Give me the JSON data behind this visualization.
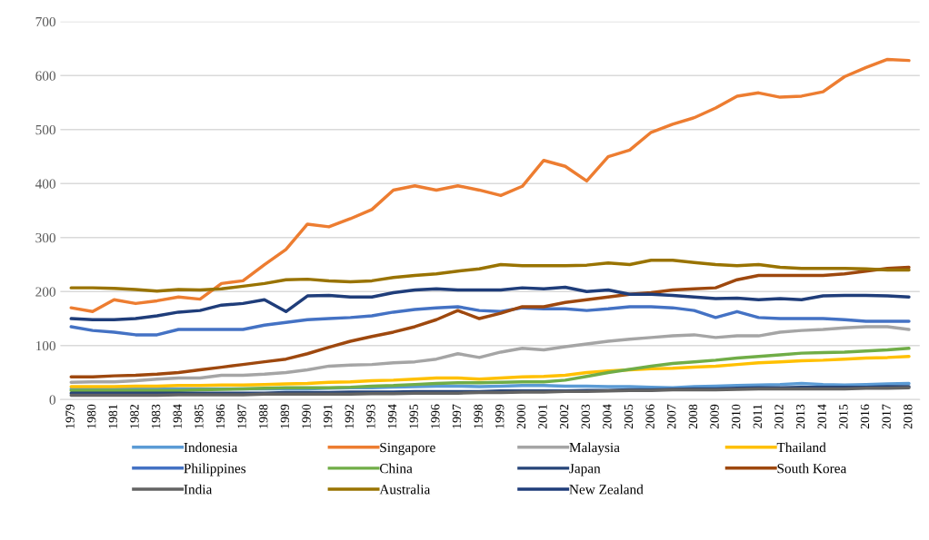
{
  "chart_data": {
    "type": "line",
    "categories": [
      "1979",
      "1980",
      "1981",
      "1982",
      "1983",
      "1984",
      "1985",
      "1986",
      "1987",
      "1988",
      "1989",
      "1990",
      "1991",
      "1992",
      "1993",
      "1994",
      "1995",
      "1996",
      "1997",
      "1998",
      "1999",
      "2000",
      "2001",
      "2002",
      "2003",
      "2004",
      "2005",
      "2006",
      "2007",
      "2008",
      "2009",
      "2010",
      "2011",
      "2012",
      "2013",
      "2014",
      "2015",
      "2016",
      "2017",
      "2018"
    ],
    "ylim": [
      0,
      700
    ],
    "yticks": [
      0,
      100,
      200,
      300,
      400,
      500,
      600,
      700
    ],
    "grid": "y",
    "legend": "bottom",
    "marker": "none",
    "line_style": "solid",
    "series": [
      {
        "name": "Indonesia",
        "color": "#5b9bd5",
        "values": [
          20,
          20,
          20,
          20,
          20,
          20,
          20,
          20,
          20,
          20,
          20,
          20,
          21,
          22,
          22,
          23,
          24,
          25,
          25,
          24,
          25,
          26,
          26,
          25,
          25,
          24,
          24,
          23,
          22,
          24,
          25,
          26,
          27,
          28,
          30,
          28,
          27,
          28,
          29,
          30
        ]
      },
      {
        "name": "Singapore",
        "color": "#ed7d31",
        "values": [
          170,
          163,
          185,
          178,
          183,
          190,
          186,
          215,
          220,
          250,
          278,
          325,
          320,
          335,
          352,
          388,
          396,
          388,
          396,
          388,
          378,
          395,
          443,
          432,
          405,
          450,
          462,
          495,
          510,
          522,
          540,
          562,
          568,
          560,
          562,
          570,
          598,
          615,
          630,
          628
        ]
      },
      {
        "name": "Malaysia",
        "color": "#a5a5a5",
        "values": [
          32,
          33,
          33,
          35,
          38,
          40,
          40,
          45,
          45,
          47,
          50,
          55,
          62,
          64,
          65,
          68,
          70,
          75,
          85,
          78,
          88,
          95,
          92,
          98,
          103,
          108,
          112,
          115,
          118,
          120,
          115,
          118,
          118,
          125,
          128,
          130,
          133,
          135,
          135,
          130
        ]
      },
      {
        "name": "Thailand",
        "color": "#ffc000",
        "values": [
          24,
          24,
          24,
          25,
          25,
          26,
          26,
          27,
          27,
          28,
          29,
          30,
          32,
          33,
          35,
          36,
          38,
          40,
          40,
          38,
          40,
          42,
          43,
          45,
          50,
          53,
          55,
          57,
          58,
          60,
          62,
          65,
          68,
          70,
          72,
          73,
          75,
          77,
          78,
          80
        ]
      },
      {
        "name": "Philippines",
        "color": "#4472c4",
        "values": [
          135,
          128,
          125,
          120,
          120,
          130,
          130,
          130,
          130,
          138,
          143,
          148,
          150,
          152,
          155,
          162,
          167,
          170,
          172,
          165,
          163,
          170,
          168,
          168,
          165,
          168,
          172,
          172,
          170,
          165,
          152,
          163,
          152,
          150,
          150,
          150,
          148,
          145,
          145,
          145
        ]
      },
      {
        "name": "China",
        "color": "#70ad47",
        "values": [
          17,
          17,
          17,
          17,
          17,
          17,
          18,
          19,
          20,
          21,
          22,
          22,
          22,
          23,
          25,
          26,
          28,
          30,
          31,
          31,
          32,
          33,
          33,
          36,
          43,
          50,
          56,
          62,
          67,
          70,
          73,
          77,
          80,
          83,
          86,
          87,
          88,
          90,
          92,
          95
        ]
      },
      {
        "name": "Japan",
        "color": "#264478",
        "values": [
          12,
          12,
          12,
          12,
          12,
          12,
          12,
          12,
          12,
          12,
          13,
          13,
          13,
          14,
          14,
          14,
          15,
          15,
          15,
          15,
          16,
          16,
          16,
          16,
          17,
          17,
          18,
          18,
          19,
          20,
          20,
          21,
          22,
          22,
          23,
          23,
          23,
          23,
          24,
          24
        ]
      },
      {
        "name": "South Korea",
        "color": "#9e480e",
        "values": [
          42,
          42,
          44,
          45,
          47,
          50,
          55,
          60,
          65,
          70,
          75,
          85,
          97,
          108,
          117,
          125,
          135,
          148,
          165,
          150,
          160,
          172,
          172,
          180,
          185,
          190,
          195,
          198,
          203,
          205,
          207,
          222,
          230,
          230,
          230,
          230,
          233,
          238,
          243,
          245
        ]
      },
      {
        "name": "India",
        "color": "#636363",
        "values": [
          8,
          8,
          8,
          8,
          8,
          9,
          9,
          9,
          9,
          10,
          10,
          10,
          10,
          10,
          11,
          11,
          12,
          12,
          12,
          13,
          13,
          14,
          14,
          15,
          15,
          16,
          17,
          17,
          18,
          18,
          18,
          19,
          20,
          20,
          20,
          20,
          20,
          21,
          21,
          22
        ]
      },
      {
        "name": "Australia",
        "color": "#997300",
        "values": [
          207,
          207,
          206,
          204,
          201,
          204,
          203,
          205,
          210,
          215,
          222,
          223,
          220,
          218,
          220,
          226,
          230,
          233,
          238,
          242,
          250,
          248,
          248,
          248,
          249,
          253,
          250,
          258,
          258,
          254,
          250,
          248,
          250,
          245,
          243,
          243,
          243,
          242,
          240,
          240
        ]
      },
      {
        "name": "New Zealand",
        "color": "#1f3d7a",
        "values": [
          150,
          148,
          148,
          150,
          155,
          162,
          165,
          175,
          178,
          185,
          163,
          192,
          193,
          190,
          190,
          198,
          203,
          205,
          203,
          203,
          203,
          207,
          205,
          208,
          200,
          203,
          195,
          195,
          193,
          190,
          187,
          188,
          185,
          187,
          185,
          192,
          193,
          193,
          192,
          190
        ]
      }
    ]
  }
}
